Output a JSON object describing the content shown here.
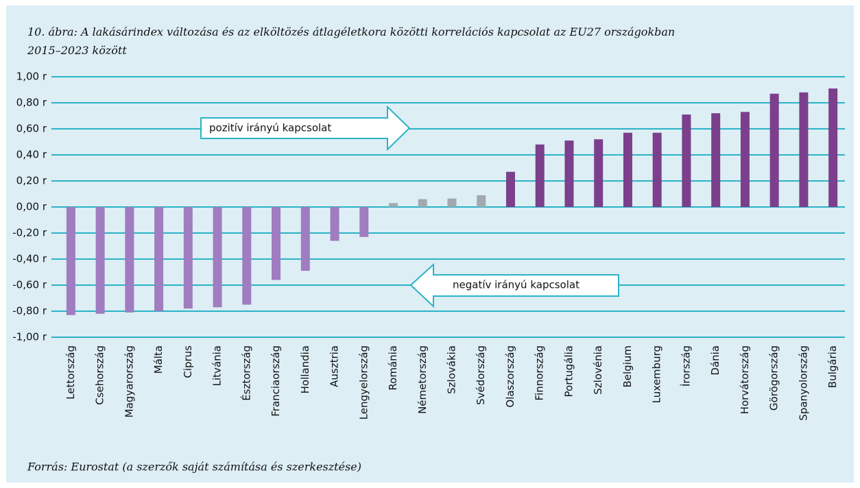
{
  "chart_data": {
    "type": "bar",
    "title": "10. ábra: A lakásárindex változása és az elköltözés átlagéletkora közötti korrelációs kapcsolat az EU27 országokban 2015–2023 között",
    "source": "Forrás: Eurostat (a szerzők saját számítása és szerkesztése)",
    "annotations": [
      "pozitív irányú kapcsolat",
      "negatív irányú kapcsolat"
    ],
    "categories": [
      "Lettország",
      "Csehország",
      "Magyarország",
      "Málta",
      "Ciprus",
      "Litvánia",
      "Észtország",
      "Franciaország",
      "Hollandia",
      "Ausztria",
      "Lengyelország",
      "Románia",
      "Németország",
      "Szlovákia",
      "Svédország",
      "Olaszország",
      "Finnország",
      "Portugália",
      "Szlovénia",
      "Belgium",
      "Luxemburg",
      "Írország",
      "Dánia",
      "Horvátország",
      "Görögország",
      "Spanyolország",
      "Bulgária"
    ],
    "values": [
      -0.83,
      -0.82,
      -0.81,
      -0.8,
      -0.78,
      -0.77,
      -0.75,
      -0.56,
      -0.49,
      -0.26,
      -0.23,
      0.03,
      0.06,
      0.065,
      0.09,
      0.27,
      0.48,
      0.51,
      0.52,
      0.57,
      0.57,
      0.71,
      0.72,
      0.73,
      0.87,
      0.88,
      0.91
    ],
    "colors": [
      "#a07cc0",
      "#a07cc0",
      "#a07cc0",
      "#a07cc0",
      "#a07cc0",
      "#a07cc0",
      "#a07cc0",
      "#a07cc0",
      "#a07cc0",
      "#a07cc0",
      "#a07cc0",
      "#a2a9b1",
      "#a2a9b1",
      "#a2a9b1",
      "#a2a9b1",
      "#7b3f8c",
      "#7b3f8c",
      "#7b3f8c",
      "#7b3f8c",
      "#7b3f8c",
      "#7b3f8c",
      "#7b3f8c",
      "#7b3f8c",
      "#7b3f8c",
      "#7b3f8c",
      "#7b3f8c",
      "#7b3f8c"
    ],
    "ylim": [
      -1,
      1
    ],
    "yticks": [
      {
        "value": 1,
        "label": "1,00 r"
      },
      {
        "value": 0.8,
        "label": "0,80 r"
      },
      {
        "value": 0.6,
        "label": "0,60 r"
      },
      {
        "value": 0.4,
        "label": "0,40 r"
      },
      {
        "value": 0.2,
        "label": "0,20 r"
      },
      {
        "value": 0,
        "label": "0,00 r"
      },
      {
        "value": -0.2,
        "label": "-0,20 r"
      },
      {
        "value": -0.4,
        "label": "-0,40 r"
      },
      {
        "value": -0.6,
        "label": "-0,60 r"
      },
      {
        "value": -0.8,
        "label": "-0,80 r"
      },
      {
        "value": -1,
        "label": "-1,00 r"
      }
    ],
    "grid": true
  }
}
